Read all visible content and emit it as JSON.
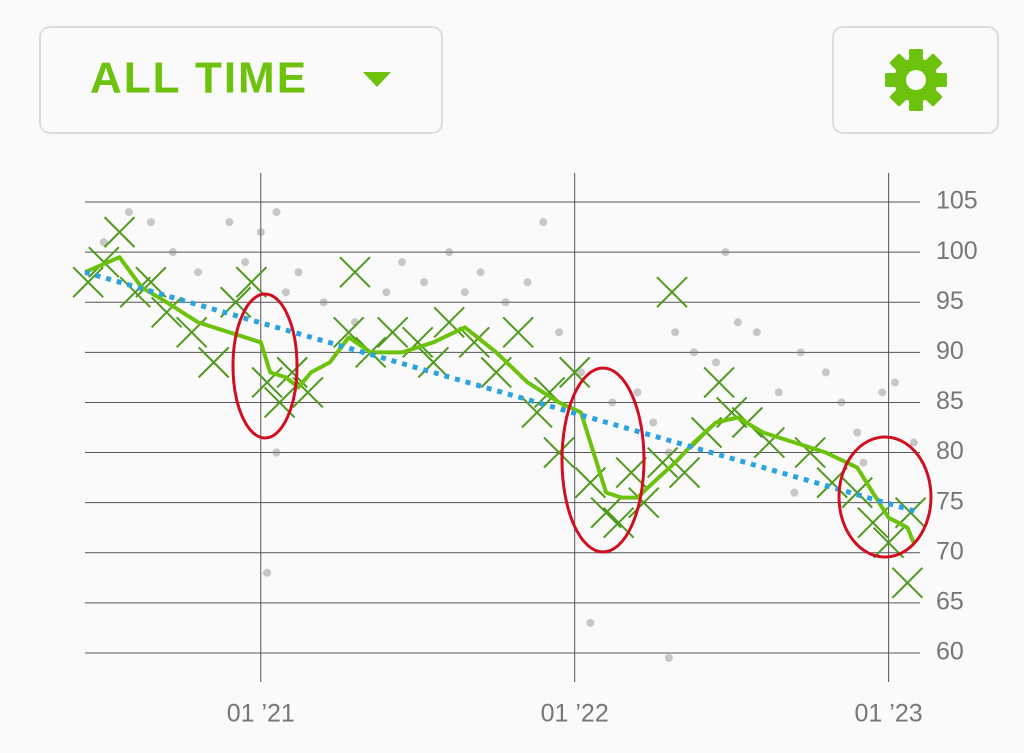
{
  "header": {
    "range_button": "ALL TIME"
  },
  "chart_data": {
    "type": "scatter",
    "xlim": [
      2020.44,
      2023.1
    ],
    "ylim": [
      57.5,
      107.5
    ],
    "xticks": [
      {
        "value": 2021,
        "label": "01 ’21"
      },
      {
        "value": 2022,
        "label": "01 ’22"
      },
      {
        "value": 2023,
        "label": "01 ’23"
      }
    ],
    "yticks": [
      60,
      65,
      70,
      75,
      80,
      85,
      90,
      95,
      100,
      105
    ],
    "grid": true,
    "series": [
      {
        "marker": "dot",
        "color": "#8a8a8a",
        "x": [
          2020.5,
          2020.58,
          2020.65,
          2020.72,
          2020.8,
          2020.9,
          2020.95,
          2021.0,
          2021.02,
          2021.05,
          2021.08,
          2021.05,
          2021.12,
          2021.2,
          2021.3,
          2021.4,
          2021.45,
          2021.52,
          2021.6,
          2021.65,
          2021.7,
          2021.78,
          2021.85,
          2021.9,
          2021.95,
          2022.02,
          2022.05,
          2022.12,
          2022.2,
          2022.25,
          2022.3,
          2022.32,
          2022.38,
          2022.45,
          2022.48,
          2022.52,
          2022.58,
          2022.65,
          2022.7,
          2022.72,
          2022.8,
          2022.85,
          2022.9,
          2022.92,
          2022.98,
          2023.02,
          2023.08,
          2022.3
        ],
        "values": [
          101,
          104,
          103,
          100,
          98,
          103,
          99,
          102,
          68,
          104,
          96,
          80,
          98,
          95,
          93,
          96,
          99,
          97,
          100,
          96,
          98,
          95,
          97,
          103,
          92,
          88,
          63,
          85,
          86,
          83,
          80,
          92,
          90,
          89,
          100,
          93,
          92,
          86,
          76,
          90,
          88,
          85,
          82,
          79,
          86,
          87,
          81,
          59.5
        ]
      },
      {
        "marker": "cross",
        "color": "#4f9a1c",
        "x": [
          2020.45,
          2020.5,
          2020.55,
          2020.6,
          2020.65,
          2020.7,
          2020.78,
          2020.85,
          2020.92,
          2020.97,
          2021.02,
          2021.06,
          2021.1,
          2021.15,
          2021.28,
          2021.3,
          2021.35,
          2021.42,
          2021.5,
          2021.55,
          2021.6,
          2021.68,
          2021.75,
          2021.82,
          2021.88,
          2021.92,
          2021.95,
          2022.0,
          2022.05,
          2022.1,
          2022.14,
          2022.18,
          2022.22,
          2022.28,
          2022.31,
          2022.35,
          2022.42,
          2022.46,
          2022.5,
          2022.55,
          2022.62,
          2022.75,
          2022.82,
          2022.9,
          2022.95,
          2023.0,
          2023.06,
          2023.07
        ],
        "values": [
          97,
          99,
          102,
          96,
          97,
          94,
          92,
          89,
          95,
          97,
          87,
          85,
          88,
          86,
          92,
          98,
          90,
          92,
          91,
          89,
          93,
          91,
          88,
          92,
          84,
          86,
          80,
          88,
          77,
          74,
          73,
          78,
          75,
          79,
          96,
          78,
          82,
          87,
          84,
          83,
          81,
          80,
          77,
          76,
          73,
          71,
          67,
          74
        ]
      },
      {
        "marker": "line",
        "color": "#6cc20c",
        "x": [
          2020.44,
          2020.55,
          2020.62,
          2020.7,
          2020.8,
          2020.9,
          2021.0,
          2021.03,
          2021.08,
          2021.12,
          2021.16,
          2021.22,
          2021.28,
          2021.35,
          2021.45,
          2021.55,
          2021.65,
          2021.75,
          2021.85,
          2021.95,
          2022.02,
          2022.06,
          2022.1,
          2022.15,
          2022.2,
          2022.25,
          2022.32,
          2022.38,
          2022.45,
          2022.52,
          2022.6,
          2022.7,
          2022.8,
          2022.9,
          2022.95,
          2023.0,
          2023.06,
          2023.08
        ],
        "values": [
          98,
          99.5,
          96.5,
          95,
          93,
          92,
          91,
          88,
          87.5,
          86.5,
          88,
          89,
          91.5,
          90,
          90,
          91,
          92.5,
          90,
          87,
          85,
          84,
          80,
          76,
          75.5,
          75.5,
          77,
          79,
          81,
          83,
          83.5,
          82,
          81,
          80,
          78.5,
          76,
          73.5,
          72.5,
          71
        ]
      },
      {
        "marker": "dotted",
        "color": "#2aa3e0",
        "x": [
          2020.44,
          2023.1
        ],
        "values": [
          98,
          74
        ]
      }
    ]
  }
}
